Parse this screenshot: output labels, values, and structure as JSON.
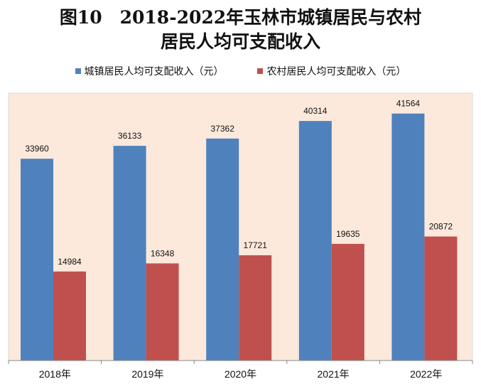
{
  "chart_data": {
    "type": "bar",
    "title_line1": "图10　2018-2022年玉林市城镇居民与农村",
    "title_line2": "居民人均可支配收入",
    "categories": [
      "2018年",
      "2019年",
      "2020年",
      "2021年",
      "2022年"
    ],
    "series": [
      {
        "name": "城镇居民人均可支配收入（元）",
        "color": "#4f81bd",
        "values": [
          33960,
          36133,
          37362,
          40314,
          41564
        ]
      },
      {
        "name": "农村居民人均可支配收入（元）",
        "color": "#c0504d",
        "values": [
          14984,
          16348,
          17721,
          19635,
          20872
        ]
      }
    ],
    "ylim": [
      0,
      45000
    ],
    "legend": "top",
    "grid": false,
    "plot_bg": "#fce9dc"
  }
}
